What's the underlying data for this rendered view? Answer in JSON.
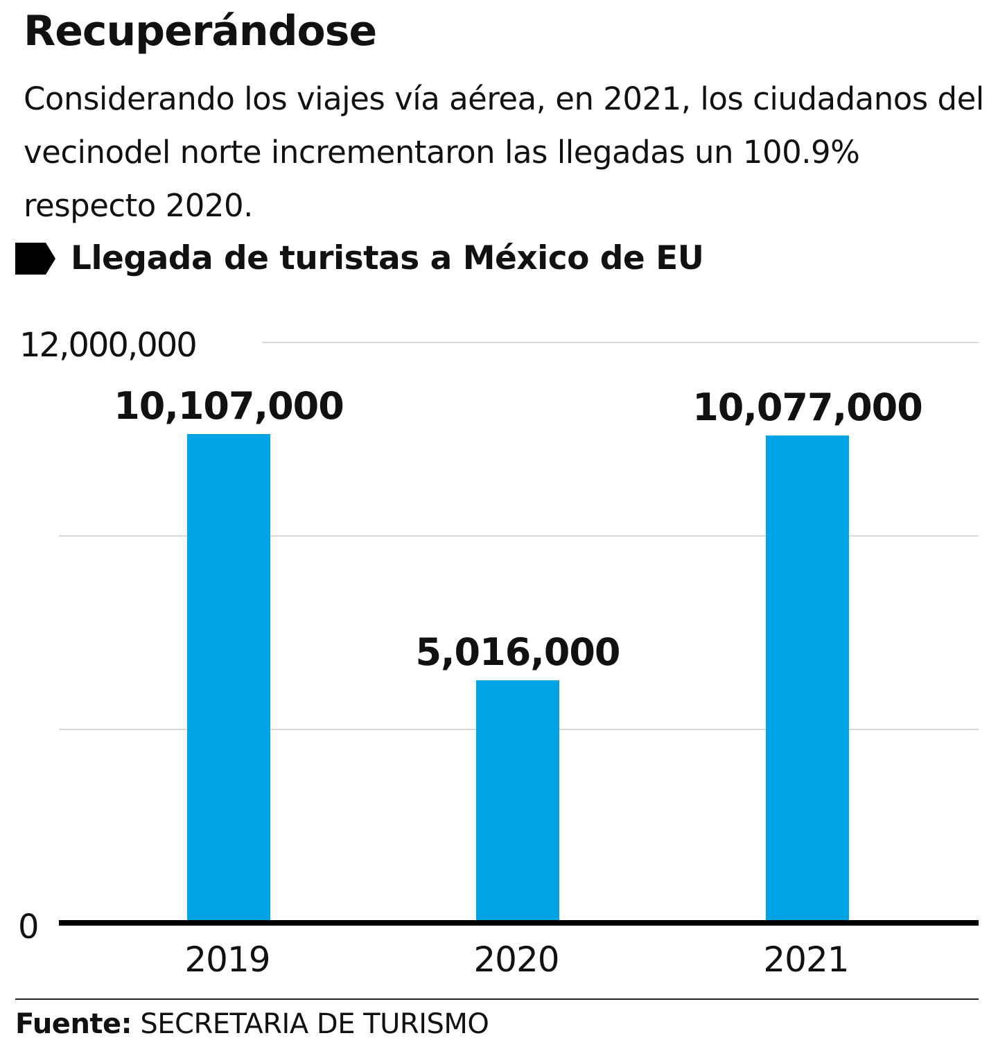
{
  "header": {
    "title": "Recuperándose",
    "subtitle": "Considerando los viajes vía aérea, en 2021, los ciudadanos del vecinodel norte incrementaron las llegadas un 100.9% respecto 2020.",
    "chart_label": "Llegada de turistas a México de EU",
    "marker_icon": "pentagon-arrow-marker"
  },
  "source": {
    "label": "Fuente:",
    "value": "SECRETARIA DE TURISMO"
  },
  "chart_data": {
    "type": "bar",
    "title": "Llegada de turistas a México de EU",
    "categories": [
      "2019",
      "2020",
      "2021"
    ],
    "values": [
      10107000,
      5016000,
      10077000
    ],
    "data_labels": [
      "10,107,000",
      "5,016,000",
      "10,077,000"
    ],
    "ylim": [
      0,
      12000000
    ],
    "y_tick_labels": [
      "0",
      "12,000,000"
    ],
    "gridlines": [
      4000000,
      8000000,
      12000000
    ],
    "grid": true,
    "bar_color": "#00a3e6",
    "xlabel": "",
    "ylabel": ""
  }
}
